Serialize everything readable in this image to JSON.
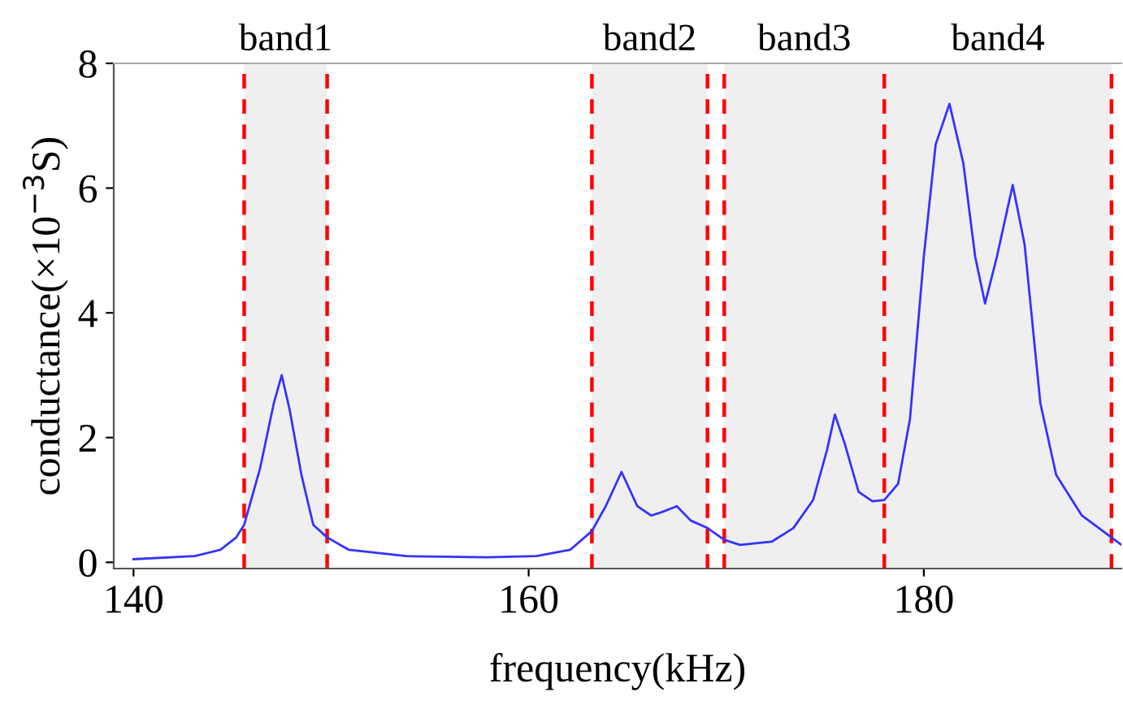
{
  "chart_data": {
    "type": "line",
    "xlabel": "frequency(kHz)",
    "ylabel": "conductance(×10$^{−3}$S)",
    "xlim": [
      139,
      190
    ],
    "xticks": [
      140,
      160,
      180
    ],
    "ylim": [
      -0.1,
      8
    ],
    "yticks": [
      0,
      2,
      4,
      6,
      8
    ],
    "grid": false,
    "legend": false,
    "marker": "none",
    "line_style": "solid",
    "series": [
      {
        "color": "#3333ff",
        "x": [
          140,
          143.1,
          144.4,
          145.2,
          145.6,
          146.4,
          147.1,
          147.5,
          147.9,
          148.5,
          149.1,
          149.8,
          150.9,
          153.8,
          157.9,
          160.4,
          162.1,
          163.2,
          163.9,
          164.7,
          165.5,
          166.2,
          166.7,
          167.5,
          168.2,
          169.05,
          169.9,
          170.7,
          172.3,
          173.4,
          174.4,
          175.1,
          175.5,
          176.0,
          176.7,
          177.4,
          178.0,
          178.7,
          179.3,
          180.0,
          180.6,
          181.3,
          182.0,
          182.6,
          183.1,
          183.7,
          184.5,
          185.1,
          185.9,
          186.7,
          188.0,
          190.0
        ],
        "values": [
          0.05,
          0.1,
          0.2,
          0.4,
          0.6,
          1.5,
          2.55,
          3.0,
          2.45,
          1.4,
          0.6,
          0.4,
          0.2,
          0.1,
          0.08,
          0.1,
          0.2,
          0.5,
          0.9,
          1.45,
          0.9,
          0.75,
          0.8,
          0.9,
          0.67,
          0.55,
          0.36,
          0.28,
          0.33,
          0.55,
          1.0,
          1.8,
          2.37,
          1.9,
          1.13,
          0.98,
          1.0,
          1.26,
          2.3,
          4.9,
          6.7,
          7.35,
          6.4,
          4.9,
          4.15,
          4.9,
          6.05,
          5.1,
          2.55,
          1.4,
          0.75,
          0.28
        ]
      }
    ],
    "bands": [
      {
        "axis": "x",
        "from": 145.6,
        "to": 149.8,
        "label": "band1",
        "color": "#efefef"
      },
      {
        "axis": "x",
        "from": 163.2,
        "to": 169.05,
        "label": "band2",
        "color": "#efefef"
      },
      {
        "axis": "x",
        "from": 169.9,
        "to": 178.0,
        "label": "band3",
        "color": "#efefef"
      },
      {
        "axis": "x",
        "from": 178.0,
        "to": 189.5,
        "label": "band4",
        "color": "#efefef"
      }
    ],
    "ref_lines": [
      {
        "axis": "x",
        "value": 145.6,
        "color": "#ff0000",
        "line_style": "dashed"
      },
      {
        "axis": "x",
        "value": 149.8,
        "color": "#ff0000",
        "line_style": "dashed"
      },
      {
        "axis": "x",
        "value": 163.2,
        "color": "#ff0000",
        "line_style": "dashed"
      },
      {
        "axis": "x",
        "value": 169.05,
        "color": "#ff0000",
        "line_style": "dashed"
      },
      {
        "axis": "x",
        "value": 169.9,
        "color": "#ff0000",
        "line_style": "dashed"
      },
      {
        "axis": "x",
        "value": 178.0,
        "color": "#ff0000",
        "line_style": "dashed"
      },
      {
        "axis": "x",
        "value": 189.5,
        "color": "#ff0000",
        "line_style": "dashed"
      }
    ]
  }
}
